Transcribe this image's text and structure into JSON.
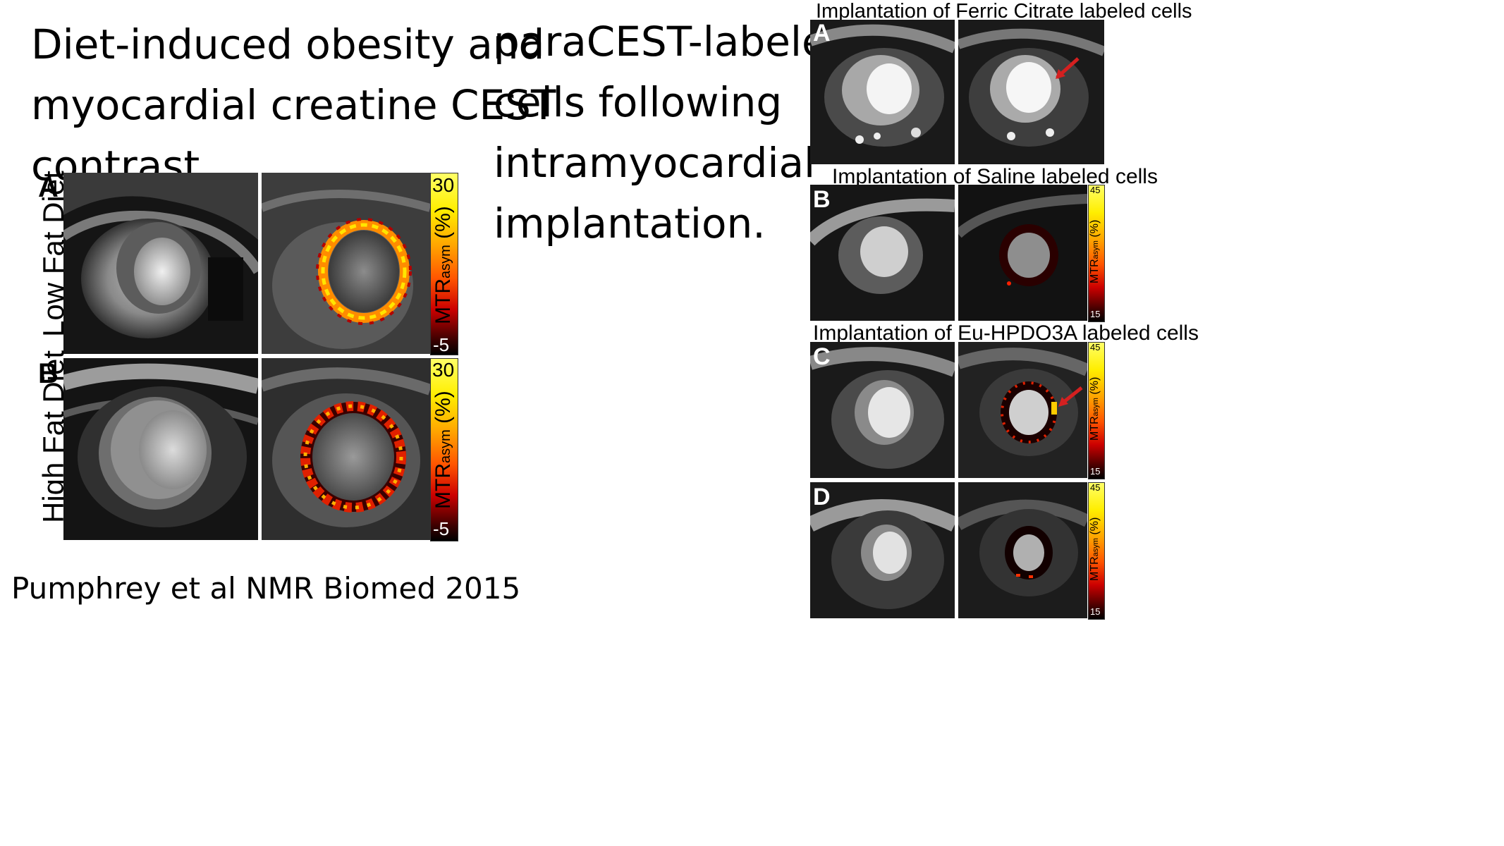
{
  "left": {
    "title": "Diet-induced obesity and\nmyocardial creatine CEST\ncontrast.",
    "citation": "Pumphrey et al  NMR Biomed 2015",
    "rows": [
      {
        "letter": "A",
        "label": "Low Fat Diet"
      },
      {
        "letter": "B",
        "label": "High Fat Diet"
      }
    ],
    "colorbar": {
      "max": "30",
      "min": "-5",
      "label_main": "MTR",
      "label_sub": "asym",
      "label_unit": "(%)"
    }
  },
  "middle": {
    "title": "paraCEST-labeled\ncells following\nintramyocardial\nimplantation."
  },
  "right": {
    "panels": [
      {
        "letter": "A",
        "caption": "Implantation of Ferric Citrate labeled cells"
      },
      {
        "letter": "B",
        "caption": "Implantation of Saline labeled cells"
      },
      {
        "letter": "C",
        "caption": "Implantation of Eu-HPDO3A labeled cells"
      },
      {
        "letter": "D",
        "caption": ""
      }
    ],
    "colorbar": {
      "max": "45",
      "min": "15",
      "label_main": "MTR",
      "label_sub": "asym",
      "label_unit": "(%)"
    }
  },
  "colors": {
    "arrow": "#d42020",
    "background": "#ffffff"
  }
}
